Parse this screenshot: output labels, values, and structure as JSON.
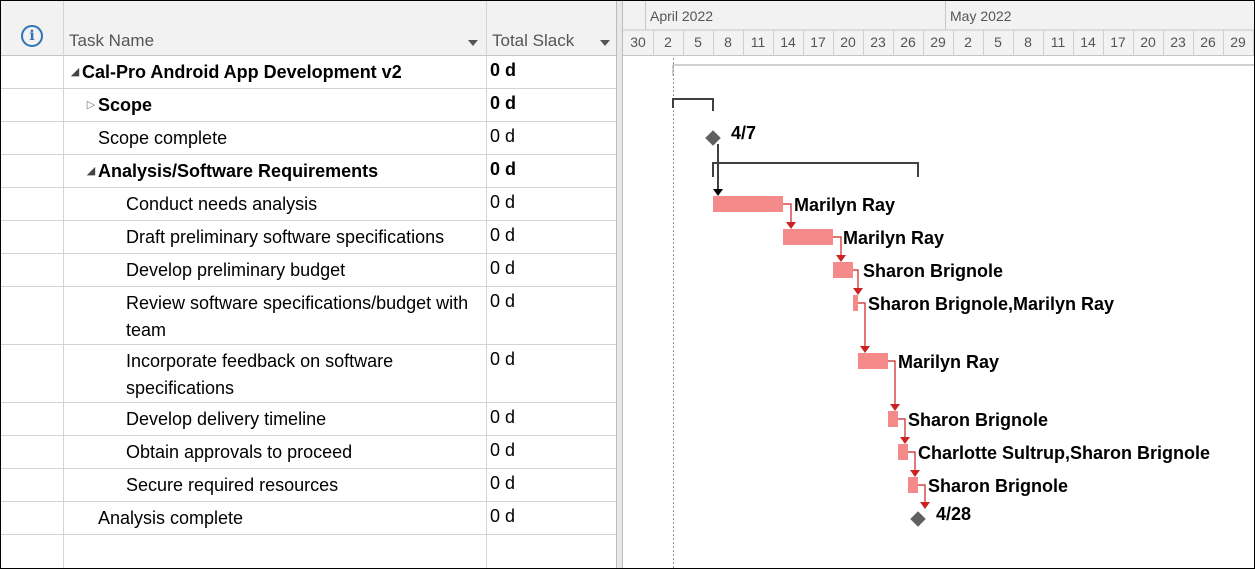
{
  "columns": {
    "task_name": "Task Name",
    "total_slack": "Total Slack"
  },
  "timeline": {
    "months": [
      "April 2022",
      "May 2022"
    ],
    "days": [
      "30",
      "2",
      "5",
      "8",
      "11",
      "14",
      "17",
      "20",
      "23",
      "26",
      "29",
      "2",
      "5",
      "8",
      "11",
      "14",
      "17",
      "20",
      "23",
      "26",
      "29"
    ]
  },
  "tasks": [
    {
      "name": "Cal-Pro Android App Development v2",
      "slack": "0 d",
      "summary": true,
      "indent": 0,
      "toggle": "open"
    },
    {
      "name": "Scope",
      "slack": "0 d",
      "summary": true,
      "indent": 1,
      "toggle": "closed"
    },
    {
      "name": "Scope complete",
      "slack": "0 d",
      "summary": false,
      "indent": 1,
      "toggle": ""
    },
    {
      "name": "Analysis/Software Requirements",
      "slack": "0 d",
      "summary": true,
      "indent": 1,
      "toggle": "open"
    },
    {
      "name": "Conduct needs analysis",
      "slack": "0 d",
      "summary": false,
      "indent": 2,
      "toggle": ""
    },
    {
      "name": "Draft preliminary software specifications",
      "slack": "0 d",
      "summary": false,
      "indent": 2,
      "toggle": ""
    },
    {
      "name": "Develop preliminary budget",
      "slack": "0 d",
      "summary": false,
      "indent": 2,
      "toggle": ""
    },
    {
      "name": "Review software specifications/budget with team",
      "slack": "0 d",
      "summary": false,
      "indent": 2,
      "toggle": ""
    },
    {
      "name": "Incorporate feedback on software specifications",
      "slack": "0 d",
      "summary": false,
      "indent": 2,
      "toggle": ""
    },
    {
      "name": "Develop delivery timeline",
      "slack": "0 d",
      "summary": false,
      "indent": 2,
      "toggle": ""
    },
    {
      "name": "Obtain approvals to proceed",
      "slack": "0 d",
      "summary": false,
      "indent": 2,
      "toggle": ""
    },
    {
      "name": "Secure required resources",
      "slack": "0 d",
      "summary": false,
      "indent": 2,
      "toggle": ""
    },
    {
      "name": "Analysis complete",
      "slack": "0 d",
      "summary": false,
      "indent": 1,
      "toggle": ""
    }
  ],
  "gantt_labels": {
    "milestone_scope": "4/7",
    "conduct_needs": "Marilyn Ray",
    "draft_specs": "Marilyn Ray",
    "prelim_budget": "Sharon Brignole",
    "review_specs": "Sharon Brignole,Marilyn Ray",
    "incorporate": "Marilyn Ray",
    "delivery_timeline": "Sharon Brignole",
    "approvals": "Charlotte Sultrup,Sharon Brignole",
    "resources": "Sharon Brignole",
    "milestone_analysis": "4/28"
  },
  "colors": {
    "critical_bar": "#f48a8a",
    "critical_link": "#cc2222",
    "summary_bar": "#404040",
    "milestone": "#606060",
    "info_icon": "#2e74b5"
  }
}
